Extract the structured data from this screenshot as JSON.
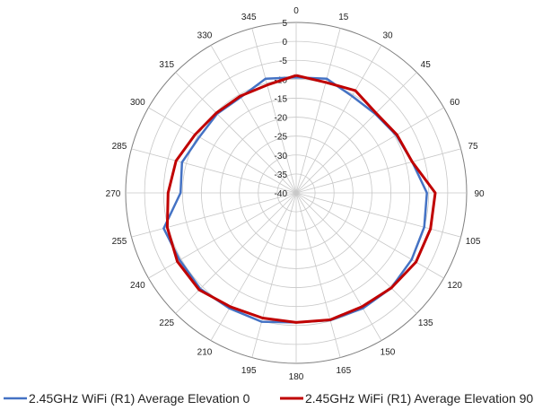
{
  "chart_data": {
    "type": "polar-line",
    "angles": [
      0,
      15,
      30,
      45,
      60,
      75,
      90,
      105,
      120,
      135,
      150,
      165,
      180,
      195,
      210,
      225,
      240,
      255,
      270,
      285,
      300,
      315,
      330,
      345
    ],
    "angle_labels": [
      "0",
      "15",
      "30",
      "45",
      "60",
      "75",
      "90",
      "105",
      "120",
      "135",
      "150",
      "165",
      "180",
      "195",
      "210",
      "225",
      "240",
      "255",
      "270",
      "285",
      "300",
      "315",
      "330",
      "345"
    ],
    "radial_ticks": [
      "5",
      "0",
      "-5",
      "-10",
      "-15",
      "-20",
      "-25",
      "-30",
      "-35",
      "-40"
    ],
    "rlim": [
      -40,
      5
    ],
    "grid": true,
    "legend_position": "bottom",
    "colors": {
      "series1": "#4472C4",
      "series2": "#C00000",
      "grid": "#c8c8c8"
    },
    "series": [
      {
        "name": "2.45GHz WiFi (R1) Average Elevation 0",
        "values": [
          -9.5,
          -8.8,
          -10.5,
          -10.5,
          -9.5,
          -8.3,
          -5.5,
          -5,
          -4.8,
          -4.5,
          -4.8,
          -5.2,
          -5.8,
          -4.8,
          -4.8,
          -4.2,
          -4.5,
          -3.8,
          -9.5,
          -8.8,
          -10.5,
          -10.5,
          -10.8,
          -8.8
        ]
      },
      {
        "name": "2.45GHz WiFi (R1) Average Elevation 90",
        "values": [
          -9,
          -9.8,
          -8.8,
          -10.2,
          -9.3,
          -8.3,
          -3.3,
          -3.3,
          -3.5,
          -4.5,
          -5.3,
          -5.3,
          -5.8,
          -5.8,
          -5.3,
          -3.8,
          -3.8,
          -4.8,
          -6.2,
          -7.2,
          -9.2,
          -10.2,
          -10.5,
          -10.5
        ]
      }
    ]
  }
}
